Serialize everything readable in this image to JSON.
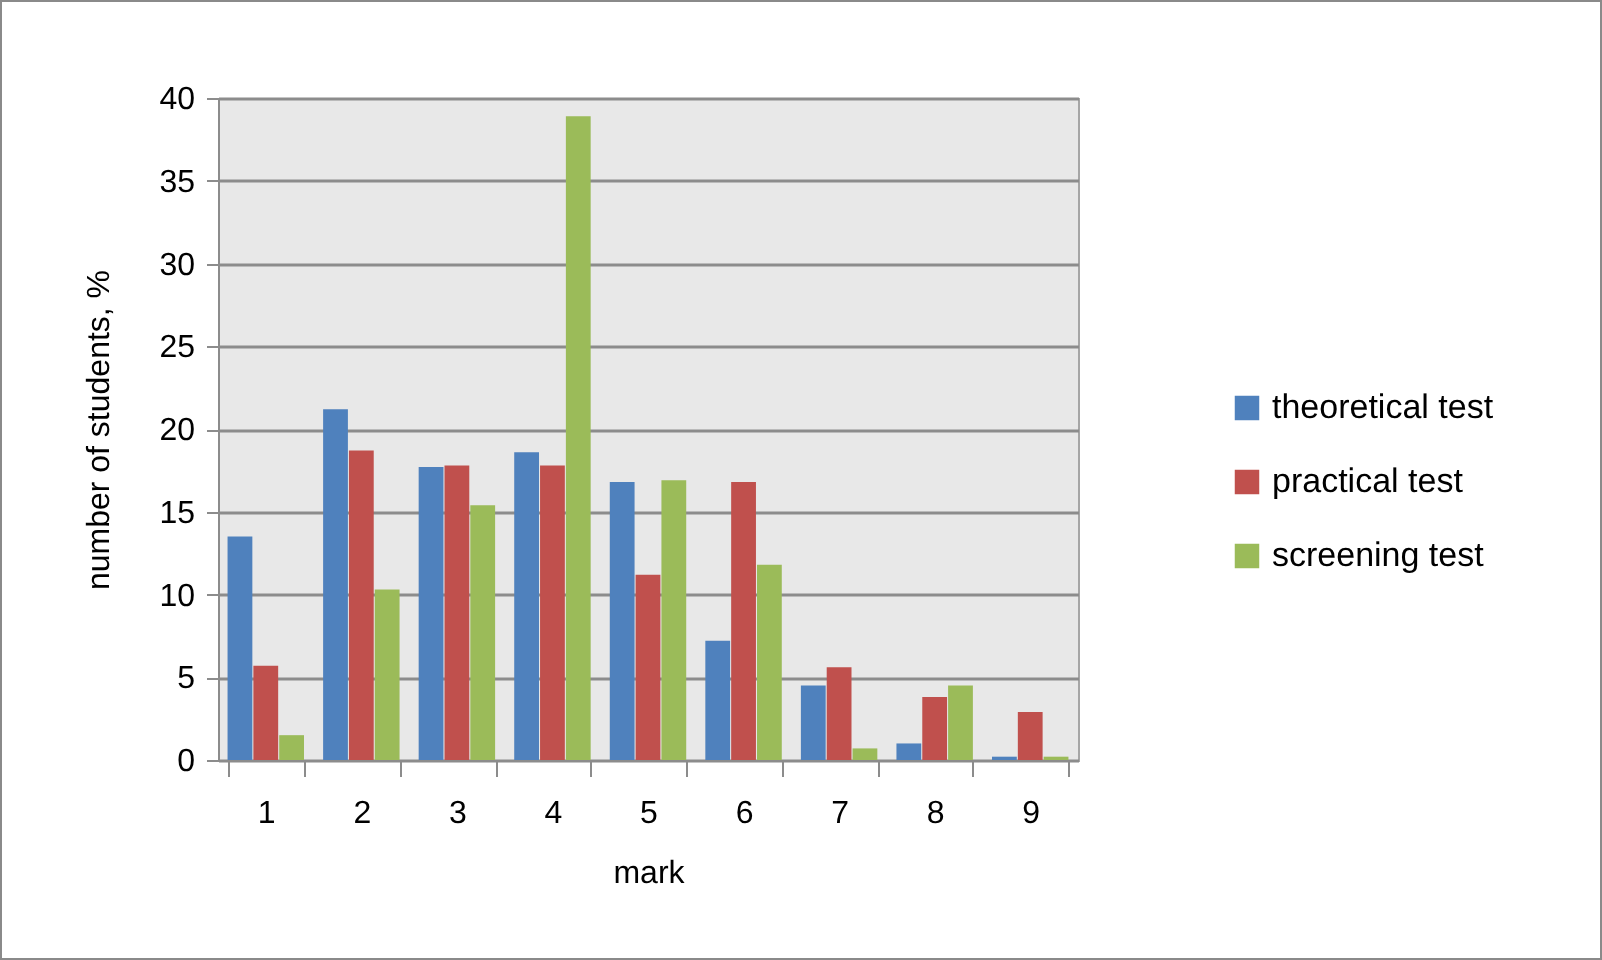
{
  "chart_data": {
    "type": "bar",
    "xlabel": "mark",
    "ylabel": "number of students, %",
    "categories": [
      "1",
      "2",
      "3",
      "4",
      "5",
      "6",
      "7",
      "8",
      "9"
    ],
    "series": [
      {
        "name": "theoretical test",
        "color": "#4f81bd",
        "values": [
          13.5,
          21.2,
          17.7,
          18.6,
          16.8,
          7.2,
          4.5,
          1,
          0.2
        ]
      },
      {
        "name": "practical test",
        "color": "#c0504d",
        "values": [
          5.7,
          18.7,
          17.8,
          17.8,
          11.2,
          16.8,
          5.6,
          3.8,
          2.9
        ]
      },
      {
        "name": "screening test",
        "color": "#9bbb59",
        "values": [
          1.5,
          10.3,
          15.4,
          38.9,
          16.9,
          11.8,
          0.7,
          4.5,
          0.2
        ]
      }
    ],
    "ylim": [
      0,
      40
    ],
    "yticks": [
      0,
      5,
      10,
      15,
      20,
      25,
      30,
      35,
      40
    ],
    "grid": "y",
    "legend": "right"
  }
}
